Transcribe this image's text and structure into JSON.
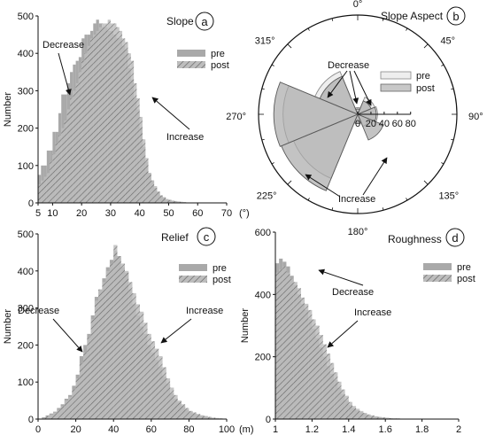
{
  "chart_data": [
    {
      "panel": "a",
      "type": "histogram",
      "title": "Slope",
      "xlabel": "(°)",
      "ylabel": "Number",
      "xlim": [
        5,
        70
      ],
      "ylim": [
        0,
        500
      ],
      "x_ticks": [
        5,
        10,
        20,
        30,
        40,
        50,
        60,
        70
      ],
      "y_ticks": [
        0,
        100,
        200,
        300,
        400,
        500
      ],
      "bin_width": 1,
      "bins_start": [
        5,
        6,
        7,
        8,
        9,
        10,
        11,
        12,
        13,
        14,
        15,
        16,
        17,
        18,
        19,
        20,
        21,
        22,
        23,
        24,
        25,
        26,
        27,
        28,
        29,
        30,
        31,
        32,
        33,
        34,
        35,
        36,
        37,
        38,
        39,
        40,
        41,
        42,
        43,
        44,
        45,
        46,
        47,
        48,
        49,
        50,
        51,
        52,
        53,
        54,
        55,
        56,
        57,
        58,
        59,
        60
      ],
      "series": [
        {
          "name": "pre",
          "values": [
            75,
            100,
            100,
            140,
            140,
            190,
            190,
            240,
            290,
            290,
            320,
            350,
            370,
            380,
            390,
            440,
            450,
            450,
            460,
            480,
            490,
            480,
            470,
            470,
            460,
            460,
            450,
            440,
            440,
            420,
            410,
            360,
            330,
            280,
            250,
            200,
            150,
            110,
            80,
            60,
            40,
            30,
            20,
            15,
            10,
            8,
            6,
            4,
            3,
            2,
            2,
            1,
            1,
            1,
            1,
            1
          ]
        },
        {
          "name": "post",
          "values": [
            50,
            60,
            70,
            80,
            110,
            130,
            160,
            180,
            200,
            220,
            250,
            280,
            300,
            320,
            350,
            380,
            400,
            420,
            440,
            450,
            460,
            470,
            480,
            480,
            490,
            480,
            480,
            470,
            460,
            440,
            430,
            400,
            380,
            320,
            280,
            230,
            170,
            120,
            80,
            60,
            45,
            30,
            20,
            15,
            10,
            8,
            6,
            5,
            4,
            3,
            2,
            1,
            1,
            1,
            1,
            1
          ]
        }
      ],
      "annotations": [
        "Decrease",
        "Increase"
      ],
      "legend": "top-right"
    },
    {
      "panel": "b",
      "type": "rose",
      "title": "Slope Aspect",
      "direction_labels": [
        "0°",
        "45°",
        "90°",
        "135°",
        "180°",
        "225°",
        "270°",
        "315°"
      ],
      "radial_ticks": [
        0,
        20,
        40,
        60,
        80
      ],
      "rmax": 150,
      "sector_width_deg": 45,
      "categories": [
        "N",
        "NE",
        "E",
        "SE",
        "S",
        "SW",
        "W",
        "NW"
      ],
      "series": [
        {
          "name": "pre",
          "values": [
            10,
            28,
            30,
            20,
            12,
            105,
            113,
            70
          ]
        },
        {
          "name": "post",
          "values": [
            8,
            22,
            28,
            42,
            14,
            125,
            127,
            62
          ]
        }
      ],
      "annotations": [
        "Decrease",
        "Increase"
      ],
      "legend": "top-right"
    },
    {
      "panel": "c",
      "type": "histogram",
      "title": "Relief",
      "xlabel": "(m)",
      "ylabel": "Number",
      "xlim": [
        0,
        100
      ],
      "ylim": [
        0,
        500
      ],
      "x_ticks": [
        0,
        20,
        40,
        60,
        80,
        100
      ],
      "y_ticks": [
        0,
        100,
        200,
        300,
        400,
        500
      ],
      "bin_width": 2,
      "bins_start": [
        0,
        2,
        4,
        6,
        8,
        10,
        12,
        14,
        16,
        18,
        20,
        22,
        24,
        26,
        28,
        30,
        32,
        34,
        36,
        38,
        40,
        42,
        44,
        46,
        48,
        50,
        52,
        54,
        56,
        58,
        60,
        62,
        64,
        66,
        68,
        70,
        72,
        74,
        76,
        78,
        80,
        82,
        84,
        86,
        88,
        90,
        92,
        94,
        96,
        98
      ],
      "series": [
        {
          "name": "pre",
          "values": [
            0,
            5,
            10,
            15,
            20,
            30,
            40,
            55,
            65,
            90,
            120,
            170,
            200,
            230,
            280,
            330,
            350,
            380,
            410,
            430,
            455,
            440,
            410,
            395,
            350,
            310,
            280,
            250,
            230,
            200,
            180,
            160,
            140,
            115,
            95,
            70,
            55,
            45,
            35,
            25,
            20,
            15,
            12,
            10,
            8,
            5,
            3,
            2,
            1,
            1
          ]
        },
        {
          "name": "post",
          "values": [
            0,
            3,
            8,
            12,
            18,
            25,
            35,
            50,
            60,
            80,
            110,
            150,
            180,
            220,
            270,
            320,
            350,
            370,
            400,
            420,
            470,
            440,
            420,
            400,
            370,
            340,
            310,
            290,
            260,
            230,
            210,
            190,
            170,
            140,
            110,
            85,
            65,
            50,
            40,
            30,
            22,
            18,
            14,
            10,
            8,
            6,
            4,
            3,
            2,
            1
          ]
        }
      ],
      "annotations": [
        "Decrease",
        "Increase"
      ],
      "legend": "top-right"
    },
    {
      "panel": "d",
      "type": "histogram",
      "title": "Roughness",
      "xlabel": "",
      "ylabel": "Number",
      "xlim": [
        1,
        2
      ],
      "ylim": [
        0,
        600
      ],
      "x_ticks": [
        1,
        1.2,
        1.4,
        1.6,
        1.8,
        2
      ],
      "y_ticks": [
        0,
        200,
        400,
        600
      ],
      "bin_width": 0.02,
      "bins_start": [
        1.0,
        1.02,
        1.04,
        1.06,
        1.08,
        1.1,
        1.12,
        1.14,
        1.16,
        1.18,
        1.2,
        1.22,
        1.24,
        1.26,
        1.28,
        1.3,
        1.32,
        1.34,
        1.36,
        1.38,
        1.4,
        1.42,
        1.44,
        1.46,
        1.48,
        1.5,
        1.52,
        1.54,
        1.56,
        1.58,
        1.6,
        1.62,
        1.64,
        1.66,
        1.68,
        1.7,
        1.72,
        1.74,
        1.76,
        1.78
      ],
      "series": [
        {
          "name": "pre",
          "values": [
            500,
            515,
            505,
            490,
            460,
            430,
            400,
            370,
            350,
            320,
            290,
            260,
            230,
            200,
            170,
            145,
            125,
            100,
            80,
            60,
            45,
            35,
            28,
            22,
            17,
            13,
            10,
            8,
            6,
            5,
            4,
            3,
            2,
            2,
            1,
            1,
            1,
            1,
            0,
            0
          ]
        },
        {
          "name": "post",
          "values": [
            470,
            480,
            490,
            470,
            450,
            440,
            420,
            390,
            370,
            350,
            320,
            300,
            270,
            240,
            210,
            180,
            150,
            120,
            95,
            75,
            55,
            42,
            33,
            26,
            20,
            15,
            12,
            9,
            7,
            5,
            4,
            3,
            2,
            2,
            1,
            1,
            1,
            1,
            0,
            0
          ]
        }
      ],
      "annotations": [
        "Decrease",
        "Increase"
      ],
      "legend": "top-right"
    }
  ]
}
